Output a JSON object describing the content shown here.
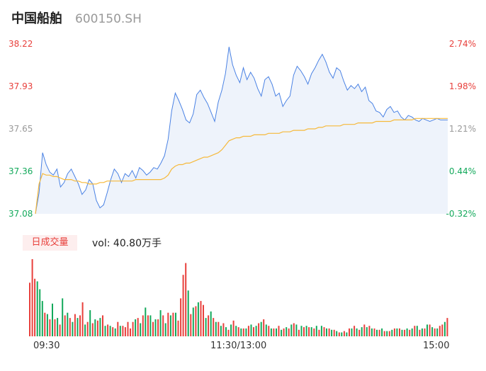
{
  "header": {
    "name": "中国船舶",
    "code": "600150.SH"
  },
  "colors": {
    "up": "#e8403c",
    "down": "#13a95b",
    "neutral": "#999999",
    "price_line": "#4a82e4",
    "avg_line": "#f6b93b",
    "area": "#eef3fb"
  },
  "volume_panel": {
    "badge": "日成交量",
    "vol_label": "vol: 40.80万手"
  },
  "chart_data": [
    {
      "type": "line",
      "title": "",
      "y_left_ticks": [
        "38.22",
        "37.93",
        "37.65",
        "37.36",
        "37.08"
      ],
      "y_right_ticks": [
        "2.74%",
        "1.98%",
        "1.21%",
        "0.44%",
        "-0.32%"
      ],
      "ylim": [
        37.08,
        38.22
      ],
      "x_ticks": [
        "09:30",
        "11:30/13:00",
        "15:00"
      ],
      "series": [
        {
          "values": [
            37.08,
            37.22,
            37.49,
            37.41,
            37.36,
            37.34,
            37.38,
            37.26,
            37.29,
            37.35,
            37.38,
            37.33,
            37.28,
            37.21,
            37.24,
            37.31,
            37.28,
            37.17,
            37.12,
            37.14,
            37.22,
            37.31,
            37.38,
            37.35,
            37.29,
            37.35,
            37.33,
            37.37,
            37.32,
            37.39,
            37.37,
            37.34,
            37.36,
            37.39,
            37.38,
            37.42,
            37.47,
            37.58,
            37.77,
            37.89,
            37.84,
            37.78,
            37.71,
            37.69,
            37.75,
            37.88,
            37.91,
            37.86,
            37.82,
            37.76,
            37.7,
            37.83,
            37.91,
            38.02,
            38.2,
            38.08,
            38.01,
            37.96,
            38.06,
            37.98,
            38.03,
            37.99,
            37.92,
            37.87,
            37.98,
            38.0,
            37.95,
            37.87,
            37.89,
            37.8,
            37.84,
            37.87,
            38.01,
            38.07,
            38.04,
            38.0,
            37.95,
            38.02,
            38.06,
            38.11,
            38.15,
            38.1,
            38.03,
            37.99,
            38.06,
            38.04,
            37.97,
            37.91,
            37.94,
            37.92,
            37.95,
            37.9,
            37.93,
            37.84,
            37.82,
            37.77,
            37.76,
            37.73,
            37.78,
            37.8,
            37.76,
            37.77,
            37.73,
            37.71,
            37.74,
            37.73,
            37.71,
            37.7,
            37.72,
            37.71,
            37.7,
            37.71,
            37.72,
            37.71,
            37.71,
            37.71
          ]
        },
        {
          "values": [
            37.08,
            37.28,
            37.35,
            37.34,
            37.34,
            37.33,
            37.33,
            37.32,
            37.31,
            37.31,
            37.31,
            37.3,
            37.3,
            37.29,
            37.29,
            37.28,
            37.28,
            37.28,
            37.29,
            37.29,
            37.3,
            37.3,
            37.3,
            37.3,
            37.3,
            37.3,
            37.3,
            37.3,
            37.31,
            37.31,
            37.31,
            37.31,
            37.31,
            37.31,
            37.31,
            37.31,
            37.32,
            37.34,
            37.38,
            37.4,
            37.41,
            37.41,
            37.42,
            37.42,
            37.43,
            37.44,
            37.45,
            37.46,
            37.46,
            37.47,
            37.48,
            37.49,
            37.51,
            37.54,
            37.57,
            37.58,
            37.59,
            37.59,
            37.6,
            37.6,
            37.6,
            37.61,
            37.61,
            37.61,
            37.61,
            37.62,
            37.62,
            37.62,
            37.62,
            37.63,
            37.63,
            37.63,
            37.64,
            37.64,
            37.64,
            37.64,
            37.65,
            37.65,
            37.65,
            37.66,
            37.66,
            37.67,
            37.67,
            37.67,
            37.67,
            37.67,
            37.68,
            37.68,
            37.68,
            37.68,
            37.69,
            37.69,
            37.69,
            37.69,
            37.69,
            37.7,
            37.7,
            37.7,
            37.7,
            37.7,
            37.71,
            37.71,
            37.71,
            37.71,
            37.71,
            37.71,
            37.72,
            37.72,
            37.72,
            37.72,
            37.72,
            37.72,
            37.72,
            37.72,
            37.72,
            37.72
          ]
        }
      ]
    },
    {
      "type": "bar",
      "title": "",
      "values": [
        4.1,
        5.9,
        4.4,
        4.2,
        3.6,
        2.7,
        1.8,
        1.7,
        1.3,
        2.5,
        1.3,
        1.4,
        0.9,
        2.9,
        1.6,
        1.8,
        1.4,
        1.1,
        1.7,
        1.4,
        1.6,
        2.6,
        0.9,
        1.1,
        2.0,
        1.0,
        1.3,
        1.2,
        1.4,
        1.6,
        0.8,
        0.9,
        0.8,
        0.7,
        0.6,
        1.1,
        0.8,
        0.8,
        0.7,
        1.1,
        0.6,
        1.1,
        1.3,
        1.4,
        1.0,
        1.6,
        2.2,
        1.6,
        1.6,
        1.1,
        1.3,
        1.3,
        2.0,
        1.6,
        1.0,
        1.8,
        1.6,
        1.8,
        1.8,
        1.2,
        2.9,
        4.7,
        5.6,
        3.5,
        1.7,
        2.2,
        2.3,
        2.6,
        2.7,
        2.4,
        1.4,
        1.6,
        1.9,
        1.4,
        1.1,
        1.1,
        0.8,
        1.0,
        0.7,
        0.5,
        0.9,
        1.2,
        0.8,
        0.7,
        0.6,
        0.6,
        0.6,
        0.8,
        0.9,
        0.7,
        0.8,
        1.0,
        1.1,
        1.3,
        0.9,
        0.8,
        0.6,
        0.6,
        0.6,
        0.8,
        0.5,
        0.6,
        0.7,
        0.6,
        0.9,
        1.0,
        0.9,
        0.5,
        0.8,
        0.7,
        0.8,
        0.7,
        0.7,
        0.6,
        0.8,
        0.5,
        0.8,
        0.7,
        0.6,
        0.6,
        0.5,
        0.5,
        0.4,
        0.3,
        0.3,
        0.4,
        0.3,
        0.6,
        0.6,
        0.8,
        0.6,
        0.5,
        0.7,
        0.9,
        0.7,
        0.8,
        0.6,
        0.6,
        0.5,
        0.5,
        0.6,
        0.4,
        0.4,
        0.4,
        0.5,
        0.6,
        0.6,
        0.6,
        0.5,
        0.5,
        0.6,
        0.5,
        0.6,
        0.8,
        0.8,
        0.5,
        0.6,
        0.6,
        0.9,
        0.9,
        0.7,
        0.6,
        0.6,
        0.8,
        0.9,
        1.1,
        1.4
      ],
      "directions": [
        "up",
        "up",
        "up",
        "down",
        "down",
        "down",
        "up",
        "down",
        "up",
        "down",
        "up",
        "down",
        "up",
        "down",
        "up",
        "down",
        "up",
        "down",
        "up",
        "down",
        "up",
        "up",
        "down",
        "up",
        "down",
        "up",
        "down",
        "up",
        "down",
        "up",
        "down",
        "up",
        "down",
        "up",
        "down",
        "up",
        "down",
        "up",
        "up",
        "up",
        "up",
        "up",
        "down",
        "up",
        "down",
        "up",
        "down",
        "up",
        "down",
        "up",
        "down",
        "up",
        "down",
        "up",
        "down",
        "up",
        "down",
        "up",
        "down",
        "up",
        "up",
        "up",
        "up",
        "down",
        "up",
        "down",
        "up",
        "down",
        "up",
        "up",
        "down",
        "up",
        "down",
        "up",
        "down",
        "up",
        "down",
        "up",
        "down",
        "up",
        "down",
        "up",
        "down",
        "up",
        "down",
        "up",
        "down",
        "up",
        "down",
        "up",
        "down",
        "up",
        "down",
        "up",
        "down",
        "up",
        "down",
        "up",
        "down",
        "up",
        "down",
        "up",
        "down",
        "up",
        "down",
        "up",
        "down",
        "up",
        "down",
        "up",
        "down",
        "up",
        "down",
        "up",
        "down",
        "up",
        "down",
        "up",
        "down",
        "up",
        "down",
        "up",
        "down",
        "up",
        "down",
        "up",
        "down",
        "up",
        "down",
        "up",
        "down",
        "up",
        "down",
        "up",
        "down",
        "up",
        "down",
        "up",
        "down",
        "up",
        "down",
        "up",
        "down",
        "up",
        "down",
        "up",
        "down",
        "up",
        "down",
        "up",
        "down",
        "up",
        "down",
        "up",
        "down",
        "up",
        "down",
        "up",
        "down",
        "up",
        "down",
        "up",
        "down",
        "up",
        "up",
        "down",
        "up",
        "down"
      ]
    }
  ]
}
